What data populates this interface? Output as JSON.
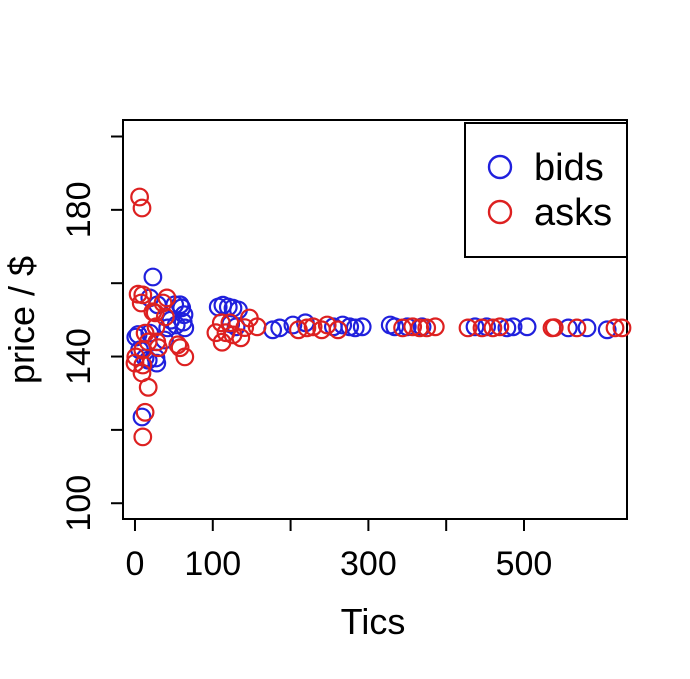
{
  "figure": {
    "background": "#ffffff"
  },
  "legend": {
    "items": [
      {
        "label": "bids",
        "color": "#2020dd"
      },
      {
        "label": "asks",
        "color": "#dd2020"
      }
    ]
  },
  "chart_data": {
    "type": "scatter",
    "title": "",
    "xlabel": "Tics",
    "ylabel": "price / $",
    "xlim": [
      -15.4,
      632.4
    ],
    "ylim": [
      95.7,
      204.5
    ],
    "grid": false,
    "legend_position": "top-right",
    "marker": "open-circle",
    "x_ticks": {
      "values": [
        0,
        100,
        200,
        300,
        400,
        500
      ],
      "labels": [
        "0",
        "100",
        "",
        "300",
        "",
        "500"
      ]
    },
    "y_ticks": {
      "values": [
        100,
        120,
        140,
        160,
        180,
        200
      ],
      "labels": [
        "100",
        "",
        "140",
        "",
        "180",
        ""
      ]
    },
    "series": [
      {
        "name": "bids",
        "color": "#2020dd",
        "points": [
          [
            1,
            145.3
          ],
          [
            4,
            146.0
          ],
          [
            6,
            141.8
          ],
          [
            9,
            123.5
          ],
          [
            13,
            139.6
          ],
          [
            17,
            139.0
          ],
          [
            19,
            146.4
          ],
          [
            19,
            156.0
          ],
          [
            23,
            161.7
          ],
          [
            27,
            139.6
          ],
          [
            28,
            138.2
          ],
          [
            29,
            154.1
          ],
          [
            38,
            144.5
          ],
          [
            42,
            147.8
          ],
          [
            46,
            149.9
          ],
          [
            51,
            154.1
          ],
          [
            53,
            148.6
          ],
          [
            58,
            154.1
          ],
          [
            60,
            153.3
          ],
          [
            62,
            149.4
          ],
          [
            63,
            151.4
          ],
          [
            64,
            147.8
          ],
          [
            107,
            153.5
          ],
          [
            113,
            154.0
          ],
          [
            120,
            153.5
          ],
          [
            126,
            153.2
          ],
          [
            133,
            152.7
          ],
          [
            123,
            148.9
          ],
          [
            130,
            148.1
          ],
          [
            177,
            147.3
          ],
          [
            186,
            147.8
          ],
          [
            203,
            148.6
          ],
          [
            219,
            149.2
          ],
          [
            255,
            148.1
          ],
          [
            267,
            148.6
          ],
          [
            276,
            148.1
          ],
          [
            283,
            147.8
          ],
          [
            292,
            148.1
          ],
          [
            328,
            148.6
          ],
          [
            334,
            148.1
          ],
          [
            350,
            148.1
          ],
          [
            369,
            148.1
          ],
          [
            437,
            148.1
          ],
          [
            452,
            148.1
          ],
          [
            478,
            147.8
          ],
          [
            486,
            148.1
          ],
          [
            504,
            148.1
          ],
          [
            557,
            147.8
          ],
          [
            581,
            147.8
          ],
          [
            607,
            147.3
          ]
        ]
      },
      {
        "name": "asks",
        "color": "#dd2020",
        "points": [
          [
            0,
            138.2
          ],
          [
            1,
            139.9
          ],
          [
            4,
            157.0
          ],
          [
            6,
            183.5
          ],
          [
            8,
            154.6
          ],
          [
            9,
            180.5
          ],
          [
            9,
            135.5
          ],
          [
            10,
            156.8
          ],
          [
            10,
            141.8
          ],
          [
            10,
            137.7
          ],
          [
            10,
            118.1
          ],
          [
            13,
            146.4
          ],
          [
            13,
            124.8
          ],
          [
            17,
            144.0
          ],
          [
            17,
            131.6
          ],
          [
            23,
            152.2
          ],
          [
            26,
            151.9
          ],
          [
            27,
            148.1
          ],
          [
            28,
            144.0
          ],
          [
            30,
            142.4
          ],
          [
            36,
            154.6
          ],
          [
            39,
            150.8
          ],
          [
            41,
            156.0
          ],
          [
            55,
            143.2
          ],
          [
            58,
            142.4
          ],
          [
            64,
            139.9
          ],
          [
            104,
            146.5
          ],
          [
            111,
            149.2
          ],
          [
            112,
            143.9
          ],
          [
            117,
            146.5
          ],
          [
            122,
            149.2
          ],
          [
            126,
            145.9
          ],
          [
            136,
            145.1
          ],
          [
            141,
            147.9
          ],
          [
            147,
            150.5
          ],
          [
            157,
            148.1
          ],
          [
            210,
            147.3
          ],
          [
            221,
            147.8
          ],
          [
            229,
            148.1
          ],
          [
            240,
            147.3
          ],
          [
            247,
            148.6
          ],
          [
            261,
            147.3
          ],
          [
            344,
            147.8
          ],
          [
            357,
            148.1
          ],
          [
            366,
            147.8
          ],
          [
            375,
            147.8
          ],
          [
            386,
            148.1
          ],
          [
            428,
            147.8
          ],
          [
            446,
            147.8
          ],
          [
            460,
            147.8
          ],
          [
            469,
            148.1
          ],
          [
            536,
            147.8
          ],
          [
            539,
            147.9
          ],
          [
            568,
            147.8
          ],
          [
            617,
            147.8
          ],
          [
            626,
            147.8
          ]
        ]
      }
    ]
  }
}
